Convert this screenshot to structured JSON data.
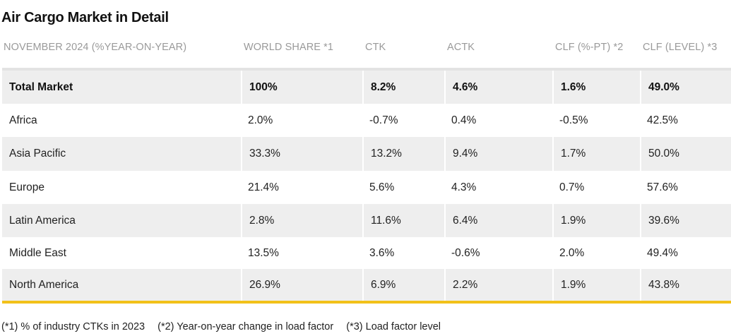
{
  "title": "Air Cargo Market in Detail",
  "columns": [
    "NOVEMBER 2024 (%YEAR-ON-YEAR)",
    "WORLD SHARE *1",
    "CTK",
    "ACTK",
    "CLF (%-PT) *2",
    "CLF (LEVEL) *3"
  ],
  "rows": [
    [
      "Total Market",
      "100%",
      "8.2%",
      "4.6%",
      "1.6%",
      "49.0%"
    ],
    [
      "Africa",
      "2.0%",
      "-0.7%",
      "0.4%",
      "-0.5%",
      "42.5%"
    ],
    [
      "Asia Pacific",
      "33.3%",
      "13.2%",
      "9.4%",
      "1.7%",
      "50.0%"
    ],
    [
      "Europe",
      "21.4%",
      "5.6%",
      "4.3%",
      "0.7%",
      "57.6%"
    ],
    [
      "Latin America",
      "2.8%",
      "11.6%",
      "6.4%",
      "1.9%",
      "39.6%"
    ],
    [
      "Middle East",
      "13.5%",
      "3.6%",
      "-0.6%",
      "2.0%",
      "49.4%"
    ],
    [
      "North America",
      "26.9%",
      "6.9%",
      "2.2%",
      "1.9%",
      "43.8%"
    ]
  ],
  "footnotes": [
    "(*1) % of industry CTKs in 2023",
    "(*2) Year-on-year change in load factor",
    "(*3) Load factor level"
  ],
  "colors": {
    "row_shade": "#eeeeee",
    "header_text": "#9a9a9a",
    "accent_rule": "#f2c11a"
  }
}
